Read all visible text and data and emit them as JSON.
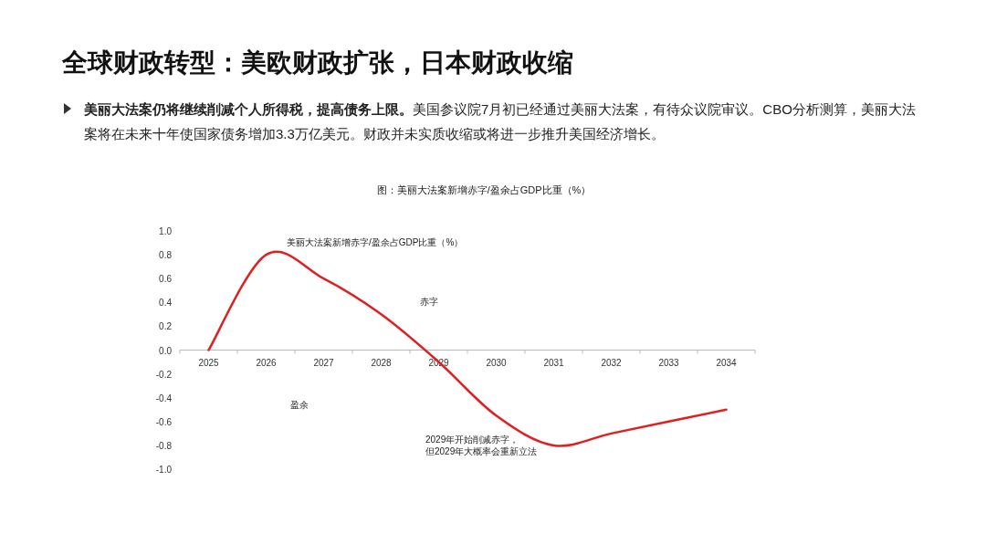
{
  "chart_data": {
    "type": "line",
    "title": "全球财政转型：美欧财政扩张，日本财政收缩",
    "subtitle": "美丽大法案仍将继续削减个人所得税，提高债务上限。美国参议院7月初已经通过美丽大法案，有待众议院审议。CBO分析测算，美丽大法案将在未来十年使国家债务增加3.3万亿美元。财政并未实质收缩或将进一步推升美国经济增长。",
    "categories": [
      "2025",
      "2026",
      "2027",
      "2028",
      "2029",
      "2030",
      "2031",
      "2032",
      "2033",
      "2034"
    ],
    "series": [
      {
        "name": "美丽大法案新增赤字/盈余占GDP比重（%）",
        "color": "#e02020",
        "values": [
          0,
          0.8,
          0.6,
          0.3,
          -0.1,
          -0.55,
          -0.8,
          -0.7,
          -0.6,
          -0.5
        ]
      }
    ],
    "ylim": [
      -1.0,
      1.0
    ],
    "yticks": [
      {
        "value": -1.0,
        "label": "-1.0"
      },
      {
        "value": -0.8,
        "label": "-0.8"
      },
      {
        "value": -0.6,
        "label": "-0.6"
      },
      {
        "value": -0.4,
        "label": "-0.4"
      },
      {
        "value": -0.2,
        "label": "-0.2"
      },
      {
        "value": 0.0,
        "label": "0.0"
      },
      {
        "value": 0.2,
        "label": "0.2"
      },
      {
        "value": 0.4,
        "label": "0.4"
      },
      {
        "value": 0.6,
        "label": "0.6"
      },
      {
        "value": 0.8,
        "label": "0.8"
      },
      {
        "value": 1.0,
        "label": "1.0"
      }
    ],
    "grid": false,
    "annotations": [
      "图：美丽大法案新增赤字/盈余占GDP比重（%）",
      "赤字",
      "盈余",
      "2029年开始削减赤字，",
      "但2029年大概率会重新立法"
    ]
  }
}
